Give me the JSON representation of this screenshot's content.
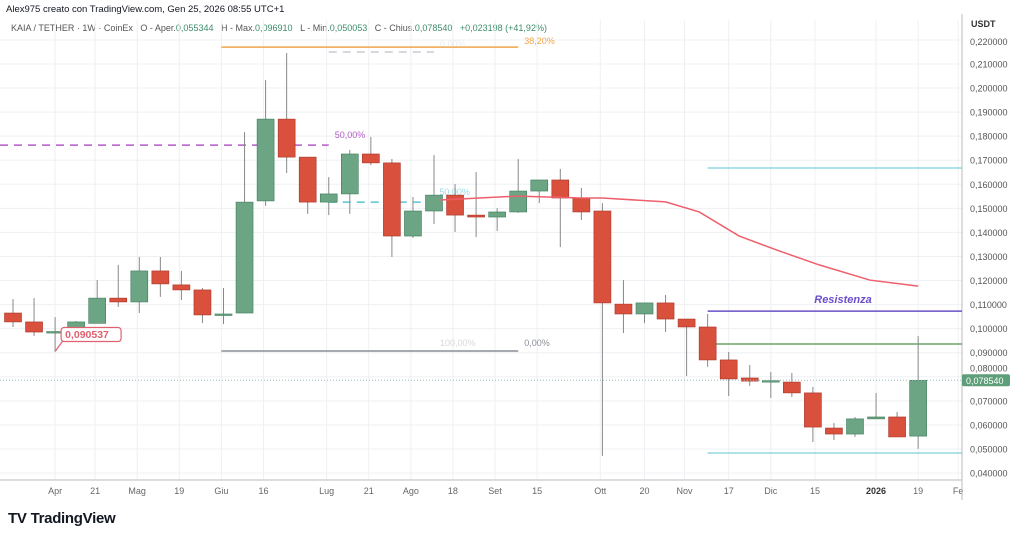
{
  "attribution": "Alex975 creato con TradingView.com, Gen 25, 2026 08:55 UTC+1",
  "legend": {
    "symbol": "KAIA / TETHER · 1W · CoinEx",
    "open_label": "O - Aper.",
    "open": "0,055344",
    "high_label": "H - Max.",
    "high": "0,096910",
    "low_label": "L - Min.",
    "low": "0,050053",
    "close_label": "C - Chius.",
    "close": "0,078540",
    "change": "+0,023198 (+41,92%)"
  },
  "logo": {
    "mark": "TV",
    "text": "TradingView"
  },
  "colors": {
    "up": "#6ba583",
    "down": "#d9503c",
    "ema": "#ef5f6b",
    "fib_orange": "#f0a54a",
    "purple_dash": "#b45ac8",
    "cyan": "#5bc4d6",
    "resistance": "#6a4fc8",
    "support_green": "#6aa56a",
    "grid": "#eef0f3"
  },
  "chart_data": {
    "type": "candlestick",
    "title": "KAIA / TETHER · 1W · CoinEx",
    "ylabel": "USDT",
    "ylim": [
      0.04,
      0.22
    ],
    "y_ticks": [
      "0,040000",
      "0,050000",
      "0,060000",
      "0,070000",
      "0,080000",
      "0,090000",
      "0,100000",
      "0,110000",
      "0,120000",
      "0,130000",
      "0,140000",
      "0,150000",
      "0,160000",
      "0,170000",
      "0,180000",
      "0,190000",
      "0,200000",
      "0,210000",
      "0,220000"
    ],
    "x_ticks": [
      {
        "label": "Apr",
        "i": 2
      },
      {
        "label": "21",
        "i": 3.9
      },
      {
        "label": "Mag",
        "i": 5.9
      },
      {
        "label": "19",
        "i": 7.9
      },
      {
        "label": "Giu",
        "i": 9.9
      },
      {
        "label": "16",
        "i": 11.9
      },
      {
        "label": "Lug",
        "i": 14.9
      },
      {
        "label": "21",
        "i": 16.9
      },
      {
        "label": "Ago",
        "i": 18.9
      },
      {
        "label": "18",
        "i": 20.9
      },
      {
        "label": "Set",
        "i": 22.9
      },
      {
        "label": "15",
        "i": 24.9
      },
      {
        "label": "Ott",
        "i": 27.9
      },
      {
        "label": "20",
        "i": 30
      },
      {
        "label": "Nov",
        "i": 31.9
      },
      {
        "label": "17",
        "i": 34
      },
      {
        "label": "Dic",
        "i": 36
      },
      {
        "label": "15",
        "i": 38.1
      },
      {
        "label": "2026",
        "i": 41,
        "bold": true
      },
      {
        "label": "19",
        "i": 43
      },
      {
        "label": "Fe",
        "i": 44.9
      }
    ],
    "ohlc": [
      [
        0.1065,
        0.1123,
        0.1007,
        0.1028
      ],
      [
        0.1028,
        0.1127,
        0.097,
        0.0986
      ],
      [
        0.0986,
        0.1048,
        0.0905,
        0.0988
      ],
      [
        0.0986,
        0.1032,
        0.0986,
        0.1028
      ],
      [
        0.1022,
        0.1202,
        0.1022,
        0.1127
      ],
      [
        0.1127,
        0.1265,
        0.109,
        0.1111
      ],
      [
        0.1111,
        0.1298,
        0.1065,
        0.124
      ],
      [
        0.124,
        0.1298,
        0.1132,
        0.1186
      ],
      [
        0.1182,
        0.124,
        0.1119,
        0.1161
      ],
      [
        0.1161,
        0.1169,
        0.1023,
        0.1057
      ],
      [
        0.1057,
        0.1169,
        0.1019,
        0.1061
      ],
      [
        0.1065,
        0.1817,
        0.1065,
        0.1526
      ],
      [
        0.1531,
        0.2033,
        0.151,
        0.1871
      ],
      [
        0.1871,
        0.2146,
        0.1647,
        0.1713
      ],
      [
        0.1713,
        0.1713,
        0.1477,
        0.1526
      ],
      [
        0.1526,
        0.163,
        0.1472,
        0.156
      ],
      [
        0.156,
        0.1743,
        0.1477,
        0.1726
      ],
      [
        0.1726,
        0.1797,
        0.168,
        0.1689
      ],
      [
        0.1689,
        0.1705,
        0.1298,
        0.1385
      ],
      [
        0.1385,
        0.1547,
        0.1377,
        0.1489
      ],
      [
        0.1489,
        0.1722,
        0.1435,
        0.1555
      ],
      [
        0.1555,
        0.1601,
        0.1402,
        0.1472
      ],
      [
        0.1472,
        0.1651,
        0.1381,
        0.1464
      ],
      [
        0.1464,
        0.1501,
        0.1406,
        0.1485
      ],
      [
        0.1485,
        0.1705,
        0.1481,
        0.1572
      ],
      [
        0.1572,
        0.1618,
        0.1522,
        0.1618
      ],
      [
        0.1618,
        0.1664,
        0.1339,
        0.1543
      ],
      [
        0.1543,
        0.1585,
        0.1452,
        0.1485
      ],
      [
        0.1489,
        0.1522,
        0.0471,
        0.1107
      ],
      [
        0.1102,
        0.1202,
        0.0982,
        0.1061
      ],
      [
        0.1061,
        0.1107,
        0.1023,
        0.1107
      ],
      [
        0.1107,
        0.114,
        0.0986,
        0.104
      ],
      [
        0.104,
        0.104,
        0.0803,
        0.1007
      ],
      [
        0.1007,
        0.1061,
        0.0841,
        0.087
      ],
      [
        0.087,
        0.0903,
        0.072,
        0.0791
      ],
      [
        0.0795,
        0.0849,
        0.0762,
        0.0782
      ],
      [
        0.0782,
        0.082,
        0.0712,
        0.0784
      ],
      [
        0.0778,
        0.0816,
        0.0716,
        0.0733
      ],
      [
        0.0733,
        0.0758,
        0.0529,
        0.0591
      ],
      [
        0.0587,
        0.0608,
        0.0537,
        0.0562
      ],
      [
        0.0562,
        0.0633,
        0.055,
        0.0625
      ],
      [
        0.0625,
        0.0733,
        0.0625,
        0.0633
      ],
      [
        0.0633,
        0.0654,
        0.055,
        0.055
      ],
      [
        0.055344,
        0.09691,
        0.050053,
        0.07854
      ]
    ],
    "ema": [
      [
        20.3,
        0.1535
      ],
      [
        24,
        0.1551
      ],
      [
        27,
        0.1543
      ],
      [
        28,
        0.1543
      ],
      [
        31,
        0.1527
      ],
      [
        32.6,
        0.1485
      ],
      [
        34.5,
        0.1385
      ],
      [
        36.4,
        0.1323
      ],
      [
        38.3,
        0.1265
      ],
      [
        40.7,
        0.1202
      ],
      [
        43,
        0.1177
      ]
    ],
    "levels": [
      {
        "name": "fib-38-line",
        "price": 0.217,
        "from": 9.9,
        "to": 24,
        "color": "fib_orange",
        "style": "solid",
        "label": "38,20%",
        "label_at": "end"
      },
      {
        "name": "fib-0-top-line",
        "price": 0.215,
        "from": 15,
        "to": 20,
        "color": "#c8ccd4",
        "style": "dash",
        "label": "0,00%",
        "label_at": "mid-faint"
      },
      {
        "name": "fib-50-purple-line",
        "price": 0.1763,
        "from": -1,
        "to": 15,
        "color": "purple_dash",
        "style": "dash",
        "label": "50,00%",
        "label_at": "end"
      },
      {
        "name": "fib-50-cyan-line",
        "price": 0.1526,
        "from": 15,
        "to": 20.4,
        "color": "cyan",
        "style": "dash",
        "label": "50,00%",
        "label_at": "end-faint"
      },
      {
        "name": "fib-100-line",
        "price": 0.0907,
        "from": 9.9,
        "to": 24,
        "color": "#8a8e96",
        "style": "solid",
        "label": "100,00%",
        "label_at": "mid-faint"
      },
      {
        "name": "fib-0-bottom-label-line",
        "price": 0.0907,
        "from": 24,
        "to": 24,
        "color": "#8a8e96",
        "style": "none",
        "label": "0,00%",
        "label_at": "end"
      },
      {
        "name": "cyan-top-line",
        "price": 0.1668,
        "from": 33,
        "to": 46,
        "color": "cyan",
        "style": "thin",
        "label": "",
        "label_at": "none"
      },
      {
        "name": "resistance-line",
        "price": 0.1073,
        "from": 33,
        "to": 46,
        "color": "resistance",
        "style": "solid",
        "label": "Resistenza",
        "label_at": "resist"
      },
      {
        "name": "green-level-line",
        "price": 0.0936,
        "from": 33.4,
        "to": 46,
        "color": "support_green",
        "style": "solid",
        "label": "",
        "label_at": "none"
      },
      {
        "name": "cyan-bottom-line",
        "price": 0.0483,
        "from": 33,
        "to": 46,
        "color": "cyan",
        "style": "thin",
        "label": "",
        "label_at": "none"
      }
    ],
    "low_callout": {
      "label": "0,090537",
      "i": 2,
      "price": 0.0905
    },
    "last_price": {
      "label": "0,078540",
      "price": 0.07854
    }
  }
}
